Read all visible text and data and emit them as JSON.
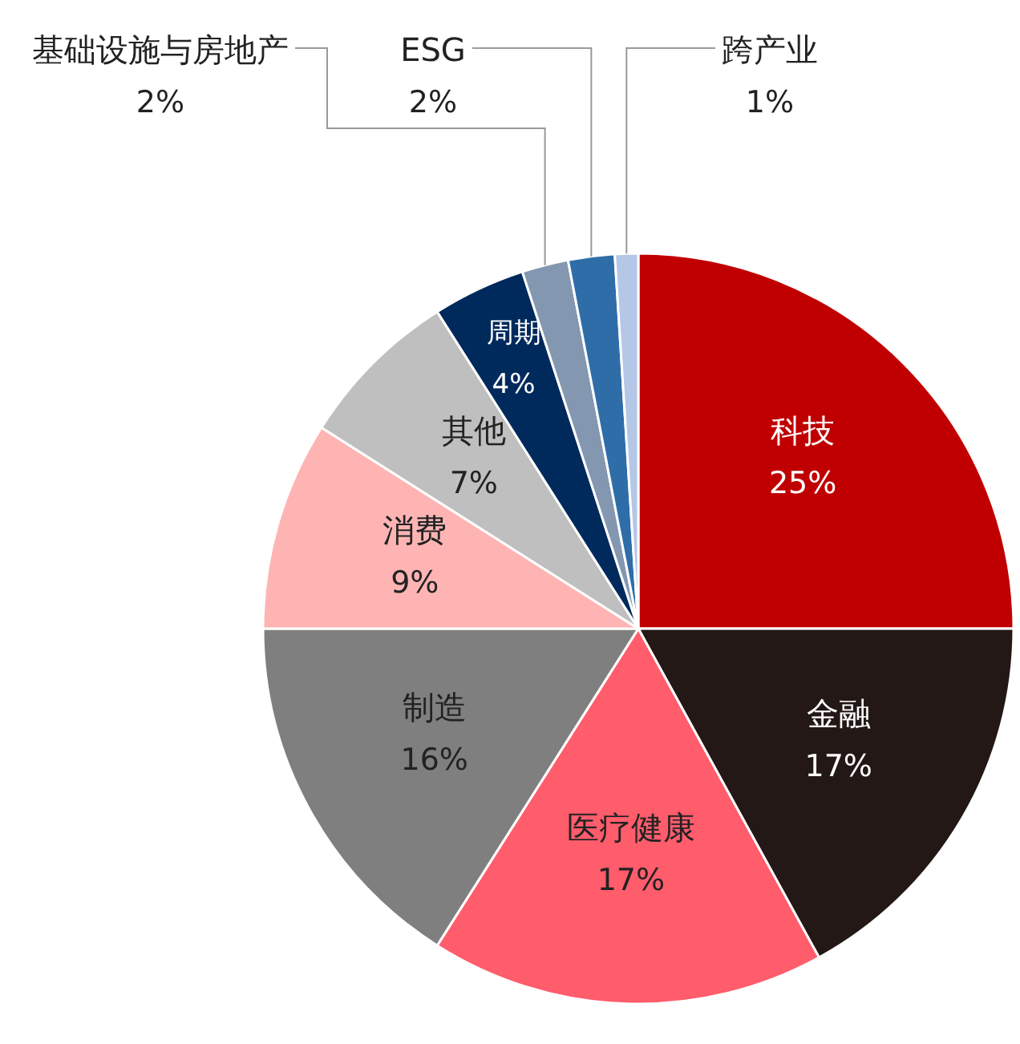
{
  "chart_data": {
    "type": "pie",
    "value_labels": [
      "25%",
      "17%",
      "17%",
      "16%",
      "9%",
      "7%",
      "4%",
      "2%",
      "2%",
      "1%"
    ],
    "categories": [
      "科技",
      "金融",
      "医疗健康",
      "制造",
      "消费",
      "其他",
      "周期",
      "基础设施与房地产",
      "ESG",
      "跨产业"
    ],
    "values": [
      25,
      17,
      17,
      16,
      9,
      7,
      4,
      2,
      2,
      1
    ],
    "colors": [
      "#c00000",
      "#231815",
      "#ff5c6c",
      "#7f7f7f",
      "#ffb4b4",
      "#bfbfbf",
      "#002a5c",
      "#8497b0",
      "#2e6da8",
      "#b4c7e7"
    ]
  }
}
